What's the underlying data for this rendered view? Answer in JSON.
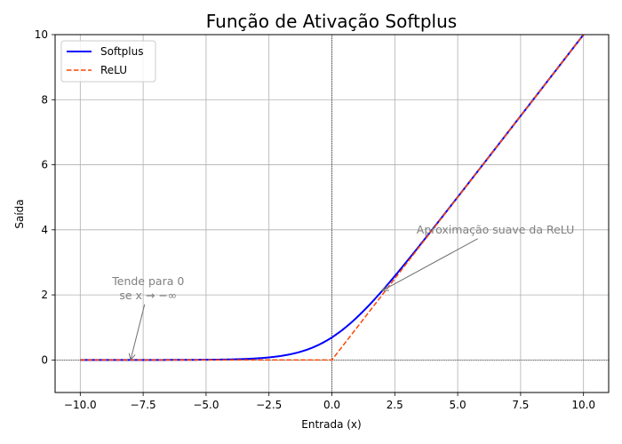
{
  "chart_data": {
    "type": "line",
    "title": "Função de Ativação Softplus",
    "xlabel": "Entrada (x)",
    "ylabel": "Saída",
    "xlim": [
      -11,
      11
    ],
    "ylim": [
      -1,
      10
    ],
    "grid": true,
    "legend_position": "top-left",
    "x_ticks": [
      -10,
      -7.5,
      -5,
      -2.5,
      0,
      2.5,
      5,
      7.5,
      10
    ],
    "x_tick_labels": [
      "−10.0",
      "−7.5",
      "−5.0",
      "−2.5",
      "0.0",
      "2.5",
      "5.0",
      "7.5",
      "10.0"
    ],
    "y_ticks": [
      0,
      2,
      4,
      6,
      8,
      10
    ],
    "y_tick_labels": [
      "0",
      "2",
      "4",
      "6",
      "8",
      "10"
    ],
    "series": [
      {
        "name": "Softplus",
        "color": "#0000ff",
        "style": "solid",
        "function": "softplus",
        "x": [
          -10,
          -8,
          -6,
          -5,
          -4,
          -3,
          -2.5,
          -2,
          -1.5,
          -1,
          -0.5,
          0,
          0.5,
          1,
          1.5,
          2,
          2.5,
          3,
          4,
          5,
          6,
          7,
          8,
          9,
          10
        ],
        "y": [
          0.0,
          0.0003,
          0.0025,
          0.0067,
          0.018,
          0.049,
          0.079,
          0.127,
          0.201,
          0.313,
          0.474,
          0.693,
          0.974,
          1.313,
          1.701,
          2.127,
          2.579,
          3.049,
          4.018,
          5.007,
          6.002,
          7.001,
          8.0,
          9.0,
          10.0
        ]
      },
      {
        "name": "ReLU",
        "color": "#ff4500",
        "style": "dashed",
        "function": "relu",
        "x": [
          -10,
          0,
          10
        ],
        "y": [
          0,
          0,
          10
        ]
      }
    ],
    "annotations": [
      {
        "lines": [
          "Tende para 0",
          "se x → −∞"
        ],
        "text_at": [
          -7.3,
          2.2
        ],
        "arrow_to": [
          -8,
          0
        ]
      },
      {
        "lines": [
          "Aproximação suave da ReLU"
        ],
        "text_at": [
          6.5,
          4.0
        ],
        "arrow_to": [
          2,
          2.13
        ]
      }
    ],
    "reference_lines": {
      "x0": true,
      "y0": true
    }
  }
}
